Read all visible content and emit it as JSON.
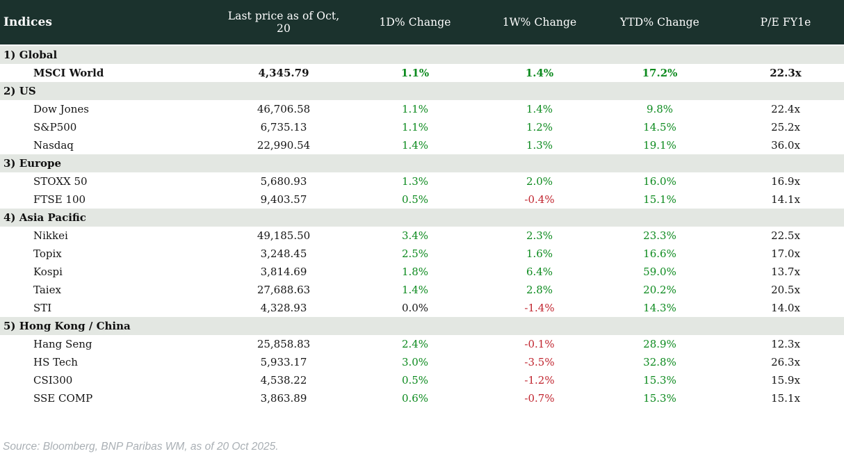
{
  "table": {
    "columns": [
      {
        "id": "name",
        "label": "Indices"
      },
      {
        "id": "price",
        "label": "Last price as of Oct, 20"
      },
      {
        "id": "d1",
        "label": "1D% Change"
      },
      {
        "id": "w1",
        "label": "1W% Change"
      },
      {
        "id": "ytd",
        "label": "YTD% Change"
      },
      {
        "id": "pe",
        "label": "P/E FY1e"
      }
    ],
    "sections": [
      {
        "label": "1) Global",
        "rows": [
          {
            "name": "MSCI World",
            "price": "4,345.79",
            "d1": "1.1%",
            "w1": "1.4%",
            "ytd": "17.2%",
            "pe": "22.3x",
            "emphasis": true
          }
        ]
      },
      {
        "label": "2) US",
        "rows": [
          {
            "name": "Dow Jones",
            "price": "46,706.58",
            "d1": "1.1%",
            "w1": "1.4%",
            "ytd": "9.8%",
            "pe": "22.4x"
          },
          {
            "name": "S&P500",
            "price": "6,735.13",
            "d1": "1.1%",
            "w1": "1.2%",
            "ytd": "14.5%",
            "pe": "25.2x"
          },
          {
            "name": "Nasdaq",
            "price": "22,990.54",
            "d1": "1.4%",
            "w1": "1.3%",
            "ytd": "19.1%",
            "pe": "36.0x"
          }
        ]
      },
      {
        "label": "3) Europe",
        "rows": [
          {
            "name": "STOXX 50",
            "price": "5,680.93",
            "d1": "1.3%",
            "w1": "2.0%",
            "ytd": "16.0%",
            "pe": "16.9x"
          },
          {
            "name": "FTSE 100",
            "price": "9,403.57",
            "d1": "0.5%",
            "w1": "-0.4%",
            "ytd": "15.1%",
            "pe": "14.1x"
          }
        ]
      },
      {
        "label": "4) Asia Pacific",
        "rows": [
          {
            "name": "Nikkei",
            "price": "49,185.50",
            "d1": "3.4%",
            "w1": "2.3%",
            "ytd": "23.3%",
            "pe": "22.5x"
          },
          {
            "name": "Topix",
            "price": "3,248.45",
            "d1": "2.5%",
            "w1": "1.6%",
            "ytd": "16.6%",
            "pe": "17.0x"
          },
          {
            "name": "Kospi",
            "price": "3,814.69",
            "d1": "1.8%",
            "w1": "6.4%",
            "ytd": "59.0%",
            "pe": "13.7x"
          },
          {
            "name": "Taiex",
            "price": "27,688.63",
            "d1": "1.4%",
            "w1": "2.8%",
            "ytd": "20.2%",
            "pe": "20.5x"
          },
          {
            "name": "STI",
            "price": "4,328.93",
            "d1": "0.0%",
            "w1": "-1.4%",
            "ytd": "14.3%",
            "pe": "14.0x"
          }
        ]
      },
      {
        "label": "5) Hong Kong / China",
        "rows": [
          {
            "name": "Hang Seng",
            "price": "25,858.83",
            "d1": "2.4%",
            "w1": "-0.1%",
            "ytd": "28.9%",
            "pe": "12.3x"
          },
          {
            "name": "HS Tech",
            "price": "5,933.17",
            "d1": "3.0%",
            "w1": "-3.5%",
            "ytd": "32.8%",
            "pe": "26.3x"
          },
          {
            "name": "CSI300",
            "price": "4,538.22",
            "d1": "0.5%",
            "w1": "-1.2%",
            "ytd": "15.3%",
            "pe": "15.9x"
          },
          {
            "name": "SSE COMP",
            "price": "3,863.89",
            "d1": "0.6%",
            "w1": "-0.7%",
            "ytd": "15.3%",
            "pe": "15.1x"
          }
        ]
      }
    ]
  },
  "source_note": "Source: Bloomberg, BNP Paribas WM, as of 20 Oct 2025.",
  "colors": {
    "header_bg": "#1b322d",
    "section_bg": "#e3e7e2",
    "positive": "#0c8a1e",
    "negative": "#c0242e",
    "neutral": "#151515",
    "source_text": "#a9afb4"
  }
}
